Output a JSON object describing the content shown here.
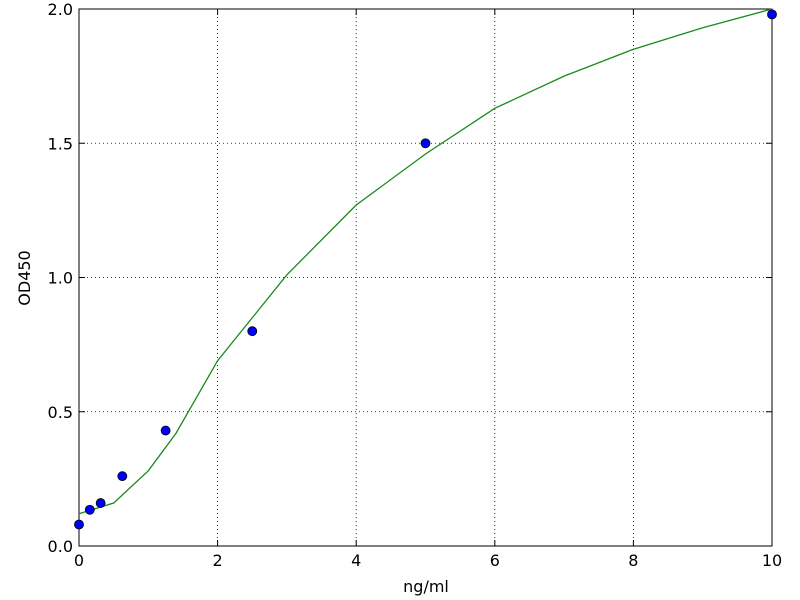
{
  "chart_data": {
    "type": "scatter",
    "xlabel": "ng/ml",
    "ylabel": "OD450",
    "xlim": [
      0,
      10
    ],
    "ylim": [
      0,
      2
    ],
    "xticks": [
      0,
      2,
      4,
      6,
      8,
      10
    ],
    "yticks": [
      {
        "value": 0,
        "label": "0.0"
      },
      {
        "value": 0.5,
        "label": "0.5"
      },
      {
        "value": 1,
        "label": "1.0"
      },
      {
        "value": 1.5,
        "label": "1.5"
      },
      {
        "value": 2,
        "label": "2.0"
      }
    ],
    "grid": true,
    "points": {
      "color": "#0000ff",
      "x": [
        0,
        0.156,
        0.3125,
        0.625,
        1.25,
        2.5,
        5,
        10
      ],
      "values": [
        0.08,
        0.135,
        0.16,
        0.26,
        0.43,
        0.8,
        1.5,
        1.98
      ]
    },
    "fit": {
      "color": "#1a8a1a",
      "x": [
        0,
        0.5,
        1,
        1.4,
        2,
        3,
        4,
        5,
        6,
        7,
        8,
        9,
        10
      ],
      "values": [
        0.12,
        0.16,
        0.28,
        0.42,
        0.69,
        1.01,
        1.27,
        1.46,
        1.63,
        1.75,
        1.85,
        1.93,
        2.0
      ]
    }
  }
}
